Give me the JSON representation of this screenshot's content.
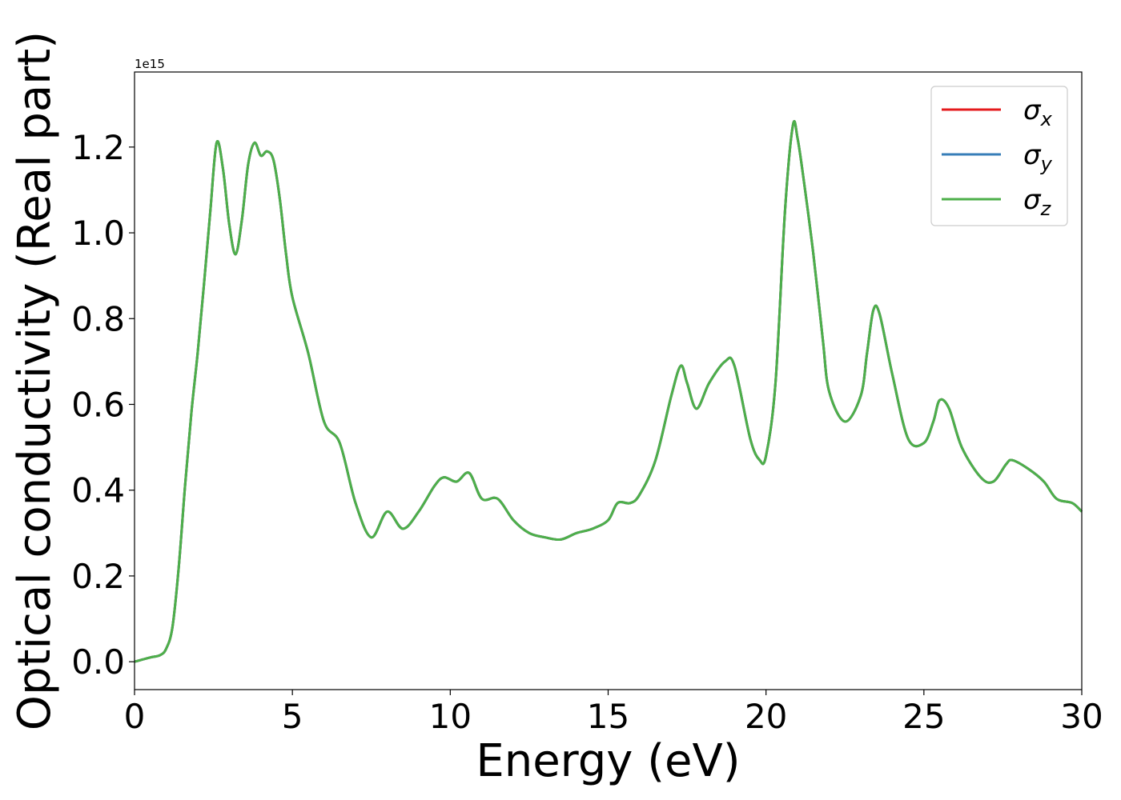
{
  "chart_data": {
    "type": "line",
    "xlabel": "Energy (eV)",
    "ylabel": "Optical conductivity (Real part)",
    "y_offset_label": "1e15",
    "xlim": [
      0,
      30
    ],
    "ylim": [
      -0.065,
      1.375
    ],
    "xticks": [
      0,
      5,
      10,
      15,
      20,
      25,
      30
    ],
    "xtick_labels": [
      "0",
      "5",
      "10",
      "15",
      "20",
      "25",
      "30"
    ],
    "yticks": [
      0.0,
      0.2,
      0.4,
      0.6,
      0.8,
      1.0,
      1.2
    ],
    "ytick_labels": [
      "0.0",
      "0.2",
      "0.4",
      "0.6",
      "0.8",
      "1.0",
      "1.2"
    ],
    "grid": false,
    "legend_position": "top-right",
    "x": [
      0,
      0.5,
      0.8,
      1.0,
      1.2,
      1.4,
      1.6,
      1.8,
      2.0,
      2.2,
      2.4,
      2.6,
      2.8,
      3.0,
      3.2,
      3.4,
      3.6,
      3.8,
      4.0,
      4.2,
      4.4,
      4.6,
      4.8,
      5.0,
      5.5,
      6.0,
      6.5,
      7.0,
      7.5,
      8.0,
      8.5,
      9.0,
      9.5,
      9.8,
      10.2,
      10.6,
      11.0,
      11.5,
      12.0,
      12.5,
      13.0,
      13.5,
      14.0,
      14.5,
      15.0,
      15.3,
      15.7,
      16.0,
      16.5,
      17.0,
      17.3,
      17.5,
      17.8,
      18.2,
      18.7,
      19.0,
      19.5,
      19.8,
      20.0,
      20.3,
      20.6,
      20.85,
      21.0,
      21.2,
      21.5,
      21.8,
      22.0,
      22.5,
      23.0,
      23.2,
      23.4,
      23.6,
      24.0,
      24.5,
      25.0,
      25.3,
      25.5,
      25.8,
      26.2,
      26.8,
      27.2,
      27.6,
      27.8,
      28.3,
      28.8,
      29.2,
      29.7,
      30.0
    ],
    "series": [
      {
        "name": "x",
        "color": "#e41a1c",
        "values": [
          0.0,
          0.01,
          0.015,
          0.03,
          0.08,
          0.22,
          0.41,
          0.58,
          0.72,
          0.88,
          1.05,
          1.21,
          1.15,
          1.02,
          0.95,
          1.03,
          1.16,
          1.21,
          1.18,
          1.19,
          1.17,
          1.08,
          0.95,
          0.85,
          0.72,
          0.56,
          0.51,
          0.37,
          0.29,
          0.35,
          0.31,
          0.35,
          0.41,
          0.43,
          0.42,
          0.44,
          0.38,
          0.38,
          0.33,
          0.3,
          0.29,
          0.285,
          0.3,
          0.31,
          0.33,
          0.37,
          0.37,
          0.39,
          0.47,
          0.62,
          0.69,
          0.65,
          0.59,
          0.65,
          0.7,
          0.69,
          0.52,
          0.47,
          0.48,
          0.65,
          1.05,
          1.25,
          1.22,
          1.12,
          0.95,
          0.75,
          0.63,
          0.56,
          0.62,
          0.72,
          0.82,
          0.81,
          0.67,
          0.52,
          0.51,
          0.56,
          0.61,
          0.59,
          0.5,
          0.43,
          0.42,
          0.46,
          0.47,
          0.45,
          0.42,
          0.38,
          0.37,
          0.35
        ]
      },
      {
        "name": "y",
        "color": "#377eb8",
        "values": [
          0.0,
          0.01,
          0.015,
          0.03,
          0.08,
          0.22,
          0.41,
          0.58,
          0.72,
          0.88,
          1.05,
          1.21,
          1.15,
          1.02,
          0.95,
          1.03,
          1.16,
          1.21,
          1.18,
          1.19,
          1.17,
          1.08,
          0.95,
          0.85,
          0.72,
          0.56,
          0.51,
          0.37,
          0.29,
          0.35,
          0.31,
          0.35,
          0.41,
          0.43,
          0.42,
          0.44,
          0.38,
          0.38,
          0.33,
          0.3,
          0.29,
          0.285,
          0.3,
          0.31,
          0.33,
          0.37,
          0.37,
          0.39,
          0.47,
          0.62,
          0.69,
          0.65,
          0.59,
          0.65,
          0.7,
          0.69,
          0.52,
          0.47,
          0.48,
          0.65,
          1.05,
          1.25,
          1.22,
          1.12,
          0.95,
          0.75,
          0.63,
          0.56,
          0.62,
          0.72,
          0.82,
          0.81,
          0.67,
          0.52,
          0.51,
          0.56,
          0.61,
          0.59,
          0.5,
          0.43,
          0.42,
          0.46,
          0.47,
          0.45,
          0.42,
          0.38,
          0.37,
          0.35
        ]
      },
      {
        "name": "z",
        "color": "#4daf4a",
        "values": [
          0.0,
          0.01,
          0.015,
          0.03,
          0.08,
          0.22,
          0.41,
          0.58,
          0.72,
          0.88,
          1.05,
          1.21,
          1.15,
          1.02,
          0.95,
          1.03,
          1.16,
          1.21,
          1.18,
          1.19,
          1.17,
          1.08,
          0.95,
          0.85,
          0.72,
          0.56,
          0.51,
          0.37,
          0.29,
          0.35,
          0.31,
          0.35,
          0.41,
          0.43,
          0.42,
          0.44,
          0.38,
          0.38,
          0.33,
          0.3,
          0.29,
          0.285,
          0.3,
          0.31,
          0.33,
          0.37,
          0.37,
          0.39,
          0.47,
          0.62,
          0.69,
          0.65,
          0.59,
          0.65,
          0.7,
          0.69,
          0.52,
          0.47,
          0.48,
          0.65,
          1.05,
          1.25,
          1.22,
          1.12,
          0.95,
          0.75,
          0.63,
          0.56,
          0.62,
          0.72,
          0.82,
          0.81,
          0.67,
          0.52,
          0.51,
          0.56,
          0.61,
          0.59,
          0.5,
          0.43,
          0.42,
          0.46,
          0.47,
          0.45,
          0.42,
          0.38,
          0.37,
          0.35
        ]
      }
    ],
    "legend": [
      {
        "symbol": "σ",
        "subscript": "x",
        "color": "#e41a1c"
      },
      {
        "symbol": "σ",
        "subscript": "y",
        "color": "#377eb8"
      },
      {
        "symbol": "σ",
        "subscript": "z",
        "color": "#4daf4a"
      }
    ]
  }
}
